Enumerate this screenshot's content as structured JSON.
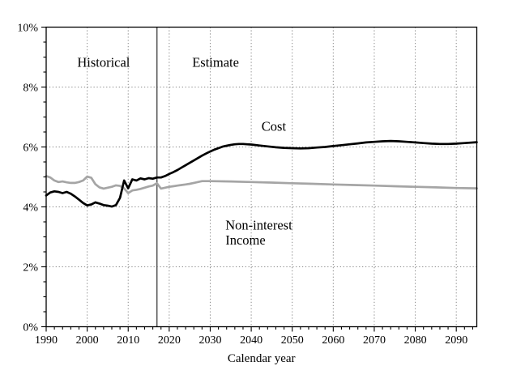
{
  "chart_data": {
    "type": "line",
    "title": "",
    "xlabel": "Calendar year",
    "ylabel": "",
    "xlim": [
      1990,
      2095
    ],
    "ylim": [
      0,
      10
    ],
    "x_ticks_major": [
      1990,
      2000,
      2010,
      2020,
      2030,
      2040,
      2050,
      2060,
      2070,
      2080,
      2090
    ],
    "x_tick_labels": [
      "1990",
      "2000",
      "2010",
      "2020",
      "2030",
      "2040",
      "2050",
      "2060",
      "2070",
      "2080",
      "2090"
    ],
    "y_ticks_major": [
      0,
      2,
      4,
      6,
      8,
      10
    ],
    "y_tick_labels": [
      "0%",
      "2%",
      "4%",
      "6%",
      "8%",
      "10%"
    ],
    "x_minor_step": 2,
    "y_minor_step": 0.5,
    "x_gridlines": [
      2000,
      2010,
      2020,
      2030,
      2040,
      2050,
      2060,
      2070,
      2080,
      2090
    ],
    "y_gridlines": [
      2,
      4,
      6,
      8
    ],
    "grid_style": "dotted",
    "grid_color": "#8a8a8a",
    "frame_color": "#000000",
    "divider": {
      "x": 2017,
      "color": "#595959",
      "meaning": "boundary between historical data and estimates"
    },
    "annotations": [
      {
        "id": "historical-label",
        "text": "Historical",
        "x": 2004.0,
        "y": 8.68,
        "anchor": "middle"
      },
      {
        "id": "estimate-label",
        "text": "Estimate",
        "x": 2031.3,
        "y": 8.68,
        "anchor": "middle"
      },
      {
        "id": "cost-label",
        "text": "Cost",
        "x": 2045.5,
        "y": 6.54,
        "anchor": "middle"
      },
      {
        "id": "non-interest-income-label-line1",
        "text": "Non-interest",
        "x": 2033.7,
        "y": 3.25,
        "anchor": "start"
      },
      {
        "id": "non-interest-income-label-line2",
        "text": "Income",
        "x": 2033.7,
        "y": 2.74,
        "anchor": "start"
      }
    ],
    "series": [
      {
        "id": "non-interest-income-line",
        "name": "Non-interest Income",
        "color": "#a5a5a5",
        "width": 2.7,
        "points": [
          [
            1990,
            5.03
          ],
          [
            1991,
            4.98
          ],
          [
            1992,
            4.88
          ],
          [
            1993,
            4.83
          ],
          [
            1994,
            4.85
          ],
          [
            1995,
            4.82
          ],
          [
            1996,
            4.8
          ],
          [
            1997,
            4.8
          ],
          [
            1998,
            4.83
          ],
          [
            1999,
            4.88
          ],
          [
            2000,
            5.01
          ],
          [
            2001,
            4.97
          ],
          [
            2002,
            4.76
          ],
          [
            2003,
            4.65
          ],
          [
            2004,
            4.61
          ],
          [
            2005,
            4.64
          ],
          [
            2006,
            4.67
          ],
          [
            2007,
            4.72
          ],
          [
            2008,
            4.7
          ],
          [
            2009,
            4.62
          ],
          [
            2010,
            4.46
          ],
          [
            2011,
            4.55
          ],
          [
            2012,
            4.57
          ],
          [
            2013,
            4.6
          ],
          [
            2014,
            4.64
          ],
          [
            2015,
            4.68
          ],
          [
            2016,
            4.71
          ],
          [
            2017,
            4.79
          ],
          [
            2018,
            4.61
          ],
          [
            2019,
            4.64
          ],
          [
            2020,
            4.67
          ],
          [
            2021,
            4.69
          ],
          [
            2022,
            4.71
          ],
          [
            2023,
            4.73
          ],
          [
            2024,
            4.75
          ],
          [
            2025,
            4.77
          ],
          [
            2026,
            4.8
          ],
          [
            2027,
            4.83
          ],
          [
            2028,
            4.86
          ],
          [
            2030,
            4.86
          ],
          [
            2035,
            4.85
          ],
          [
            2040,
            4.83
          ],
          [
            2045,
            4.81
          ],
          [
            2050,
            4.79
          ],
          [
            2055,
            4.77
          ],
          [
            2060,
            4.75
          ],
          [
            2065,
            4.73
          ],
          [
            2070,
            4.71
          ],
          [
            2075,
            4.69
          ],
          [
            2080,
            4.67
          ],
          [
            2085,
            4.65
          ],
          [
            2090,
            4.63
          ],
          [
            2095,
            4.62
          ]
        ]
      },
      {
        "id": "cost-line",
        "name": "Cost",
        "color": "#000000",
        "width": 2.7,
        "points": [
          [
            1990,
            4.38
          ],
          [
            1991,
            4.48
          ],
          [
            1992,
            4.52
          ],
          [
            1993,
            4.5
          ],
          [
            1994,
            4.46
          ],
          [
            1995,
            4.5
          ],
          [
            1996,
            4.44
          ],
          [
            1997,
            4.35
          ],
          [
            1998,
            4.24
          ],
          [
            1999,
            4.13
          ],
          [
            2000,
            4.05
          ],
          [
            2001,
            4.08
          ],
          [
            2002,
            4.15
          ],
          [
            2003,
            4.11
          ],
          [
            2004,
            4.06
          ],
          [
            2005,
            4.04
          ],
          [
            2006,
            4.01
          ],
          [
            2007,
            4.06
          ],
          [
            2008,
            4.3
          ],
          [
            2009,
            4.88
          ],
          [
            2010,
            4.62
          ],
          [
            2011,
            4.92
          ],
          [
            2012,
            4.88
          ],
          [
            2013,
            4.95
          ],
          [
            2014,
            4.92
          ],
          [
            2015,
            4.96
          ],
          [
            2016,
            4.94
          ],
          [
            2017,
            4.98
          ],
          [
            2018,
            4.98
          ],
          [
            2019,
            5.03
          ],
          [
            2020,
            5.1
          ],
          [
            2021,
            5.16
          ],
          [
            2022,
            5.23
          ],
          [
            2023,
            5.31
          ],
          [
            2024,
            5.39
          ],
          [
            2025,
            5.47
          ],
          [
            2026,
            5.55
          ],
          [
            2027,
            5.63
          ],
          [
            2028,
            5.71
          ],
          [
            2029,
            5.78
          ],
          [
            2030,
            5.85
          ],
          [
            2031,
            5.91
          ],
          [
            2032,
            5.96
          ],
          [
            2033,
            6.01
          ],
          [
            2034,
            6.04
          ],
          [
            2035,
            6.07
          ],
          [
            2036,
            6.09
          ],
          [
            2037,
            6.1
          ],
          [
            2038,
            6.1
          ],
          [
            2039,
            6.09
          ],
          [
            2040,
            6.08
          ],
          [
            2042,
            6.05
          ],
          [
            2044,
            6.02
          ],
          [
            2046,
            5.99
          ],
          [
            2048,
            5.97
          ],
          [
            2050,
            5.96
          ],
          [
            2052,
            5.95
          ],
          [
            2054,
            5.96
          ],
          [
            2056,
            5.98
          ],
          [
            2058,
            6.0
          ],
          [
            2060,
            6.03
          ],
          [
            2062,
            6.06
          ],
          [
            2064,
            6.09
          ],
          [
            2066,
            6.12
          ],
          [
            2068,
            6.15
          ],
          [
            2070,
            6.17
          ],
          [
            2072,
            6.19
          ],
          [
            2074,
            6.2
          ],
          [
            2076,
            6.19
          ],
          [
            2078,
            6.17
          ],
          [
            2080,
            6.15
          ],
          [
            2082,
            6.13
          ],
          [
            2084,
            6.11
          ],
          [
            2086,
            6.1
          ],
          [
            2088,
            6.1
          ],
          [
            2090,
            6.11
          ],
          [
            2092,
            6.13
          ],
          [
            2095,
            6.16
          ]
        ]
      }
    ]
  }
}
